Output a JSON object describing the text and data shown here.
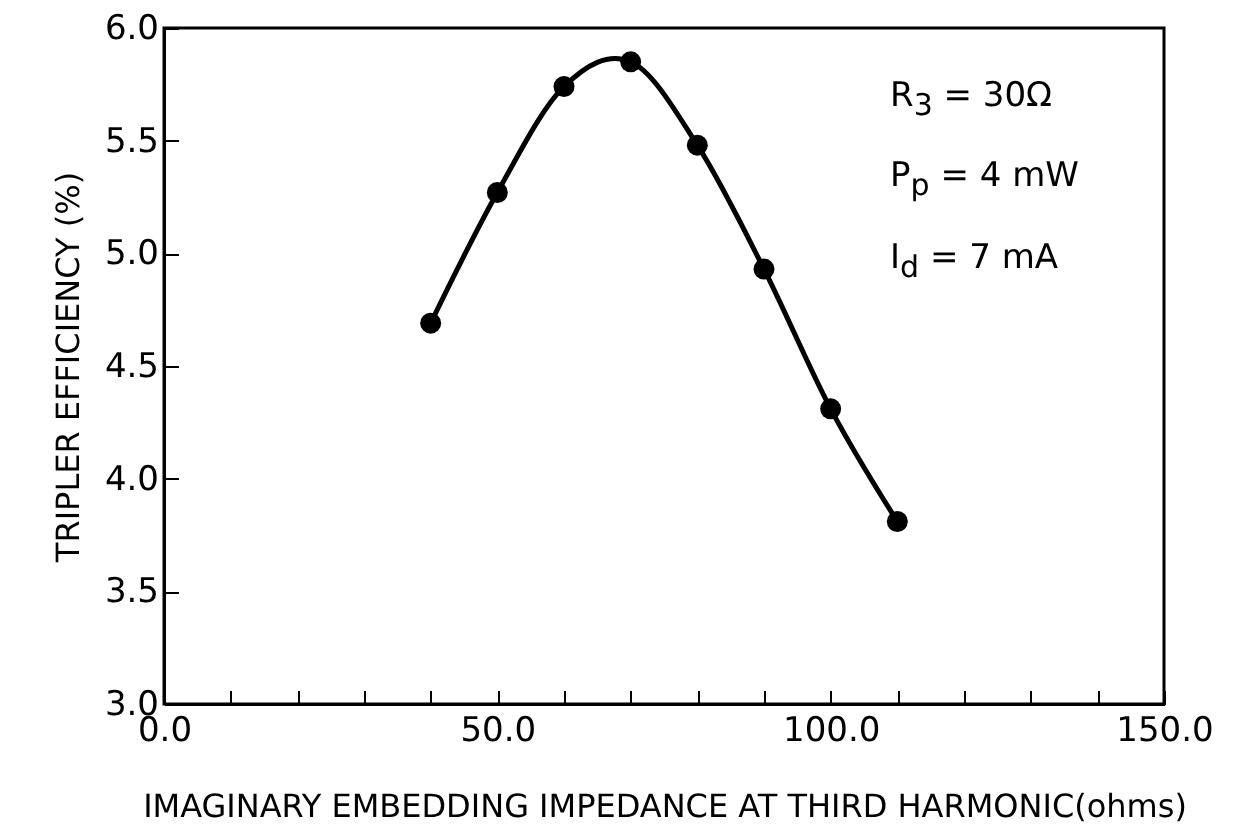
{
  "chart_data": {
    "type": "line",
    "xlabel": "IMAGINARY EMBEDDING IMPEDANCE AT THIRD HARMONIC(ohms)",
    "ylabel": "TRIPLER EFFICIENCY (%)",
    "x": [
      40,
      50,
      60,
      70,
      80,
      90,
      100,
      110
    ],
    "series": [
      {
        "color": "#000000",
        "values": [
          4.69,
          5.27,
          5.74,
          5.85,
          5.48,
          4.93,
          4.31,
          3.81
        ]
      }
    ],
    "marker": "circle",
    "grid": false,
    "xlim": [
      0,
      150
    ],
    "ylim": [
      3.0,
      6.0
    ],
    "xticks": [
      {
        "value": 0,
        "label": "0.0"
      },
      {
        "value": 10,
        "label": null
      },
      {
        "value": 20,
        "label": null
      },
      {
        "value": 30,
        "label": null
      },
      {
        "value": 40,
        "label": null
      },
      {
        "value": 50,
        "label": "50.0"
      },
      {
        "value": 60,
        "label": null
      },
      {
        "value": 70,
        "label": null
      },
      {
        "value": 80,
        "label": null
      },
      {
        "value": 90,
        "label": null
      },
      {
        "value": 100,
        "label": "100.0"
      },
      {
        "value": 110,
        "label": null
      },
      {
        "value": 120,
        "label": null
      },
      {
        "value": 130,
        "label": null
      },
      {
        "value": 140,
        "label": null
      },
      {
        "value": 150,
        "label": "150.0"
      }
    ],
    "yticks": [
      {
        "value": 3.0,
        "label": "3.0"
      },
      {
        "value": 3.5,
        "label": "3.5"
      },
      {
        "value": 4.0,
        "label": "4.0"
      },
      {
        "value": 4.5,
        "label": "4.5"
      },
      {
        "value": 5.0,
        "label": "5.0"
      },
      {
        "value": 5.5,
        "label": "5.5"
      },
      {
        "value": 6.0,
        "label": "6.0"
      }
    ],
    "annotations": [
      "R$_{3}$  =  30Ω",
      "P$_{p}$  =  4 mW",
      "I$_{d}$  =  7 mA"
    ]
  }
}
